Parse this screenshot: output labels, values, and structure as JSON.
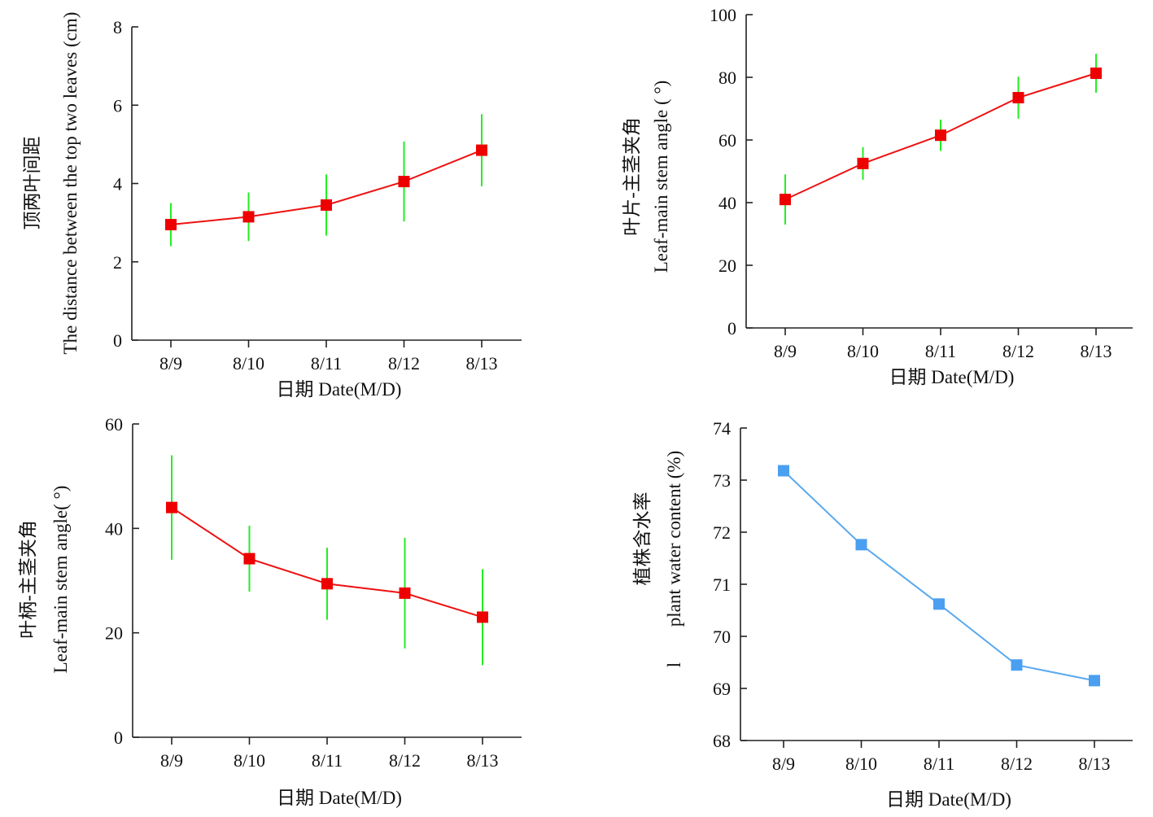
{
  "chart_data": [
    {
      "type": "line",
      "id": "top-left",
      "categories": [
        "8/9",
        "8/10",
        "8/11",
        "8/12",
        "8/13"
      ],
      "series": [
        {
          "values": [
            2.95,
            3.15,
            3.45,
            4.05,
            4.85
          ],
          "error": [
            0.55,
            0.62,
            0.78,
            1.02,
            0.92
          ]
        }
      ],
      "ylim": [
        0,
        8
      ],
      "yticks": [
        0,
        2,
        4,
        6,
        8
      ],
      "xlabel": "日期 Date(M/D)",
      "ylabel_lines": [
        "顶两叶间距",
        "The distance between the top two leaves (cm)"
      ],
      "line_color": "#ee1111",
      "marker_color": "#ee0000",
      "error_color": "#22ee22",
      "grid": false
    },
    {
      "type": "line",
      "id": "top-right",
      "categories": [
        "8/9",
        "8/10",
        "8/11",
        "8/12",
        "8/13"
      ],
      "series": [
        {
          "values": [
            41,
            52.5,
            61.5,
            73.5,
            81.3
          ],
          "error": [
            8,
            5.2,
            5,
            6.7,
            6.2
          ]
        }
      ],
      "ylim": [
        0,
        100
      ],
      "yticks": [
        0,
        20,
        40,
        60,
        80,
        100
      ],
      "xlabel": "日期 Date(M/D)",
      "ylabel_lines": [
        "叶片-主茎夹角",
        "Leaf-main stem angle ( °)"
      ],
      "line_color": "#ee1111",
      "marker_color": "#ee0000",
      "error_color": "#22ee22",
      "grid": false
    },
    {
      "type": "line",
      "id": "bottom-left",
      "categories": [
        "8/9",
        "8/10",
        "8/11",
        "8/12",
        "8/13"
      ],
      "series": [
        {
          "values": [
            44,
            34.2,
            29.4,
            27.6,
            23
          ],
          "error": [
            10,
            6.3,
            6.9,
            10.6,
            9.2
          ]
        }
      ],
      "ylim": [
        0,
        60
      ],
      "yticks": [
        0,
        20,
        40,
        60
      ],
      "xlabel": "日期 Date(M/D)",
      "ylabel_lines": [
        "叶柄-主茎夹角",
        "Leaf-main stem angle( °)"
      ],
      "line_color": "#ee1111",
      "marker_color": "#ee0000",
      "error_color": "#22ee22",
      "grid": false
    },
    {
      "type": "line",
      "id": "bottom-right",
      "categories": [
        "8/9",
        "8/10",
        "8/11",
        "8/12",
        "8/13"
      ],
      "series": [
        {
          "values": [
            73.18,
            71.76,
            70.62,
            69.45,
            69.15
          ],
          "error": []
        }
      ],
      "ylim": [
        68,
        74
      ],
      "yticks": [
        68,
        69,
        70,
        71,
        72,
        73,
        74
      ],
      "xlabel": "日期 Date(M/D)",
      "ylabel_lines": [
        "植株含水率",
        "plant water content (%)"
      ],
      "ylabel_stray": "l",
      "line_color": "#5aa9ee",
      "marker_color": "#4a9ff0",
      "error_color": "",
      "grid": false
    }
  ]
}
